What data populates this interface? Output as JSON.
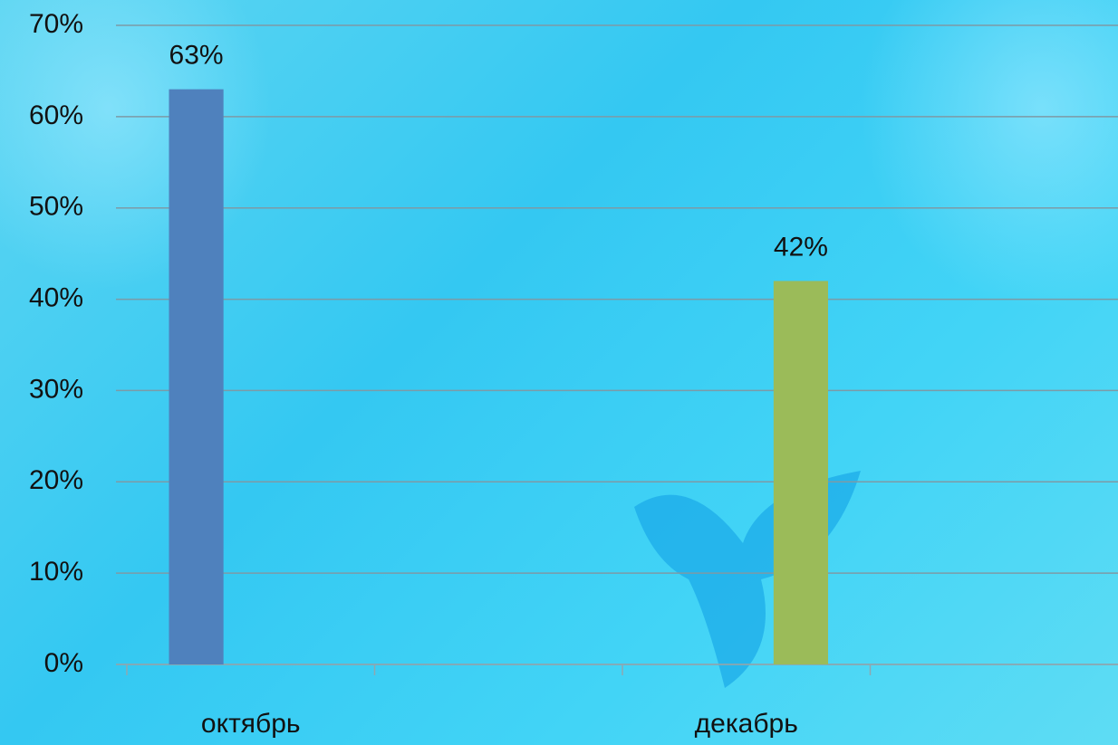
{
  "chart_data": {
    "type": "bar",
    "categories": [
      "октябрь",
      null,
      "декабрь",
      null
    ],
    "series": [
      {
        "color": "#4f81bd",
        "values": [
          63,
          null,
          null,
          null
        ],
        "value_labels": [
          "63%",
          null,
          null,
          null
        ]
      },
      {
        "color": "#9bbb59",
        "values": [
          null,
          null,
          42,
          null
        ],
        "value_labels": [
          null,
          null,
          "42%",
          null
        ]
      }
    ],
    "ylim": [
      0,
      70
    ],
    "yticks": [
      {
        "value": 0,
        "label": "0%"
      },
      {
        "value": 10,
        "label": "10%"
      },
      {
        "value": 20,
        "label": "20%"
      },
      {
        "value": 30,
        "label": "30%"
      },
      {
        "value": 40,
        "label": "40%"
      },
      {
        "value": 50,
        "label": "50%"
      },
      {
        "value": 60,
        "label": "60%"
      },
      {
        "value": 70,
        "label": "70%"
      }
    ],
    "grid": true
  }
}
